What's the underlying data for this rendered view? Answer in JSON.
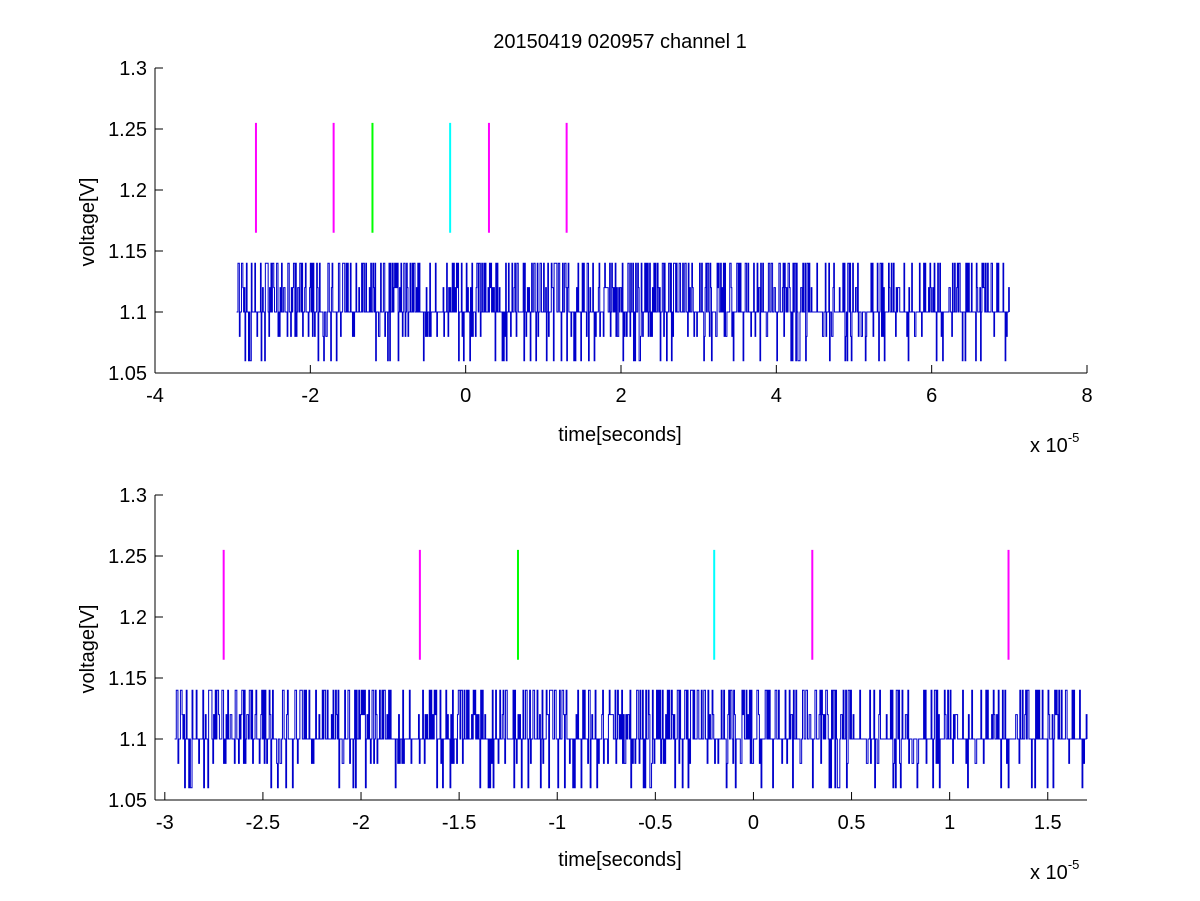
{
  "figure_title": "20150419 020957 channel 1",
  "colors": {
    "signal": "#0000CC",
    "magenta": "#FF00FF",
    "green": "#00FF00",
    "cyan": "#00FFFF",
    "axes": "#000000"
  },
  "chart_data": [
    {
      "type": "line",
      "title": "20150419 020957 channel 1",
      "xlabel": "time[seconds]",
      "ylabel": "voltage[V]",
      "x_multiplier": {
        "base": "x 10",
        "exponent": "-5"
      },
      "xlim": [
        -4e-05,
        8e-05
      ],
      "ylim": [
        1.05,
        1.3
      ],
      "xticks": [
        -4e-05,
        -2e-05,
        0,
        2e-05,
        4e-05,
        6e-05,
        8e-05
      ],
      "xtick_labels": [
        "-4",
        "-2",
        "0",
        "2",
        "4",
        "6",
        "8"
      ],
      "yticks": [
        1.05,
        1.1,
        1.15,
        1.2,
        1.25,
        1.3
      ],
      "ytick_labels": [
        "1.05",
        "1.1",
        "1.15",
        "1.2",
        "1.25",
        "1.3"
      ],
      "grid": false,
      "series": [
        {
          "style": "step-noise",
          "color": "#0000CC",
          "x_range": [
            -2.95e-05,
            7e-05
          ],
          "levels": [
            1.06,
            1.08,
            1.1,
            1.12,
            1.14
          ],
          "baseline": 1.1
        }
      ],
      "markers": [
        {
          "x": -2.7e-05,
          "y_range": [
            1.165,
            1.255
          ],
          "color": "#FF00FF"
        },
        {
          "x": -1.7e-05,
          "y_range": [
            1.165,
            1.255
          ],
          "color": "#FF00FF"
        },
        {
          "x": -1.2e-05,
          "y_range": [
            1.165,
            1.255
          ],
          "color": "#00FF00"
        },
        {
          "x": -2e-06,
          "y_range": [
            1.165,
            1.255
          ],
          "color": "#00FFFF"
        },
        {
          "x": 3e-06,
          "y_range": [
            1.165,
            1.255
          ],
          "color": "#FF00FF"
        },
        {
          "x": 1.3e-05,
          "y_range": [
            1.165,
            1.255
          ],
          "color": "#FF00FF"
        }
      ]
    },
    {
      "type": "line",
      "title": "",
      "xlabel": "time[seconds]",
      "ylabel": "voltage[V]",
      "x_multiplier": {
        "base": "x 10",
        "exponent": "-5"
      },
      "xlim": [
        -3.05e-05,
        1.7e-05
      ],
      "ylim": [
        1.05,
        1.3
      ],
      "xticks": [
        -3e-05,
        -2.5e-05,
        -2e-05,
        -1.5e-05,
        -1e-05,
        -5e-06,
        0,
        5e-06,
        1e-05,
        1.5e-05
      ],
      "xtick_labels": [
        "-3",
        "-2.5",
        "-2",
        "-1.5",
        "-1",
        "-0.5",
        "0",
        "0.5",
        "1",
        "1.5"
      ],
      "yticks": [
        1.05,
        1.1,
        1.15,
        1.2,
        1.25,
        1.3
      ],
      "ytick_labels": [
        "1.05",
        "1.1",
        "1.15",
        "1.2",
        "1.25",
        "1.3"
      ],
      "grid": false,
      "series": [
        {
          "style": "step-noise",
          "color": "#0000CC",
          "x_range": [
            -2.95e-05,
            1.7e-05
          ],
          "levels": [
            1.06,
            1.08,
            1.1,
            1.12,
            1.14
          ],
          "baseline": 1.1
        }
      ],
      "markers": [
        {
          "x": -2.7e-05,
          "y_range": [
            1.165,
            1.255
          ],
          "color": "#FF00FF"
        },
        {
          "x": -1.7e-05,
          "y_range": [
            1.165,
            1.255
          ],
          "color": "#FF00FF"
        },
        {
          "x": -1.2e-05,
          "y_range": [
            1.165,
            1.255
          ],
          "color": "#00FF00"
        },
        {
          "x": -2e-06,
          "y_range": [
            1.165,
            1.255
          ],
          "color": "#00FFFF"
        },
        {
          "x": 3e-06,
          "y_range": [
            1.165,
            1.255
          ],
          "color": "#FF00FF"
        },
        {
          "x": 1.3e-05,
          "y_range": [
            1.165,
            1.255
          ],
          "color": "#FF00FF"
        }
      ]
    }
  ]
}
